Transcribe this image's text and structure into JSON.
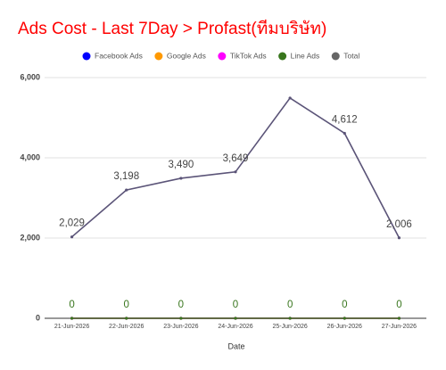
{
  "chart_data": {
    "type": "line",
    "title": "Ads Cost - Last 7Day > Profast(ทีมบริษัท)",
    "x_label": "Date",
    "categories": [
      "21-Jun-2026",
      "22-Jun-2026",
      "23-Jun-2026",
      "24-Jun-2026",
      "25-Jun-2026",
      "26-Jun-2026",
      "27-Jun-2026"
    ],
    "series": [
      {
        "name": "Facebook Ads",
        "color": "#0000ff",
        "values": [
          0,
          0,
          0,
          0,
          0,
          0,
          0
        ],
        "show_labels": false
      },
      {
        "name": "Google Ads",
        "color": "#ff9900",
        "values": [
          0,
          0,
          0,
          0,
          0,
          0,
          0
        ],
        "show_labels": false
      },
      {
        "name": "TikTok Ads",
        "color": "#ff00ff",
        "values": [
          0,
          0,
          0,
          0,
          0,
          0,
          0
        ],
        "show_labels": false
      },
      {
        "name": "Line Ads",
        "color": "#38761d",
        "values": [
          0,
          0,
          0,
          0,
          0,
          0,
          0
        ],
        "show_labels": true
      },
      {
        "name": "Total",
        "color": "#5b5478",
        "legend_color": "#666666",
        "values": [
          2029,
          3198,
          3490,
          3649,
          5490,
          4612,
          2006
        ],
        "value_labels": [
          "2,029",
          "3,198",
          "3,490",
          "3,649",
          null,
          "4,612",
          "2,006"
        ],
        "show_labels": true
      }
    ],
    "ylim": [
      0,
      6000
    ],
    "yticks": [
      0,
      {
        "value": 2000,
        "label": "2,000"
      },
      {
        "value": 4000,
        "label": "4,000"
      },
      {
        "value": 6000,
        "label": "6,000"
      }
    ],
    "grid": true
  }
}
